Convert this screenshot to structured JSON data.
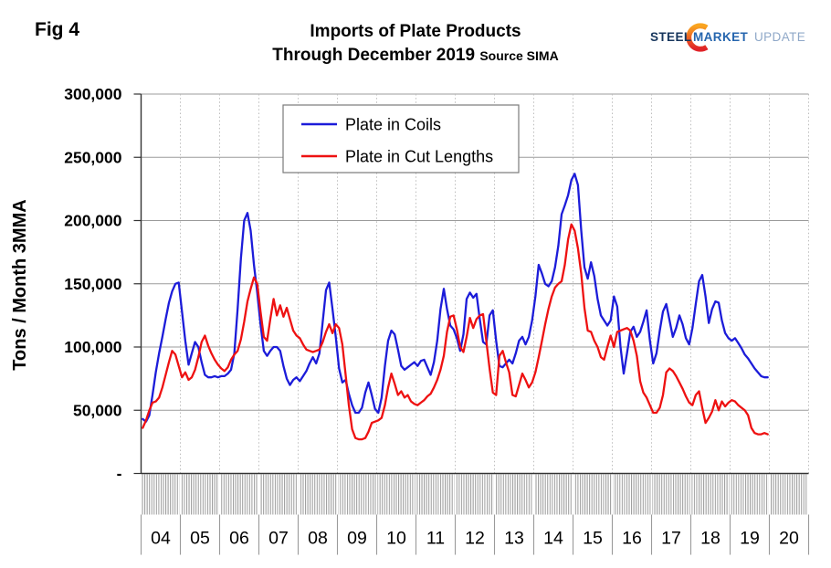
{
  "figure_label": "Fig 4",
  "title": {
    "line1": "Imports of Plate Products",
    "line2": "Through December 2019",
    "source": "Source SIMA"
  },
  "logo": {
    "steel": "STEEL",
    "market": "MARKET",
    "update": "UPDATE"
  },
  "chart_data": {
    "type": "line",
    "title": "Imports of Plate Products Through December 2019",
    "source": "SIMA",
    "ylabel": "Tons / Month 3MMA",
    "ylim": [
      0,
      300000
    ],
    "ytick_values": [
      300,
      250,
      200,
      150,
      100,
      50,
      0
    ],
    "ytick_labels": [
      "300,000",
      "250,000",
      "200,000",
      "150,000",
      "100,000",
      "50,000",
      "-"
    ],
    "x_years": [
      "04",
      "05",
      "06",
      "07",
      "08",
      "09",
      "10",
      "11",
      "12",
      "13",
      "14",
      "15",
      "16",
      "17",
      "18",
      "19",
      "20"
    ],
    "frequency": "monthly",
    "x_start": "2004-01",
    "x_end": "2019-12",
    "units": "tons per month, 3-month moving average (series values stored in thousands of tons)",
    "grid": {
      "horizontal_solid": true,
      "vertical_dotted_yearly": true
    },
    "legend": {
      "position": "top-center-inside",
      "entries": [
        {
          "label": "Plate in Coils",
          "color": "#1c1cd9"
        },
        {
          "label": "Plate in Cut Lengths",
          "color": "#ee1111"
        }
      ]
    },
    "series": [
      {
        "name": "Plate in Coils",
        "color": "#1c1cd9",
        "values": [
          43,
          41,
          46,
          62,
          80,
          95,
          108,
          122,
          135,
          144,
          150,
          151,
          128,
          105,
          86,
          95,
          104,
          100,
          88,
          78,
          76,
          76,
          77,
          76,
          77,
          77,
          79,
          82,
          95,
          130,
          170,
          200,
          206,
          192,
          165,
          143,
          118,
          97,
          93,
          97,
          100,
          100,
          97,
          85,
          75,
          70,
          74,
          76,
          73,
          77,
          81,
          87,
          92,
          87,
          95,
          120,
          145,
          151,
          130,
          108,
          83,
          72,
          74,
          63,
          54,
          48,
          48,
          52,
          64,
          72,
          62,
          51,
          48,
          60,
          85,
          105,
          113,
          110,
          98,
          85,
          82,
          84,
          86,
          88,
          85,
          89,
          90,
          84,
          78,
          88,
          105,
          130,
          146,
          130,
          117,
          114,
          107,
          97,
          110,
          138,
          143,
          139,
          142,
          122,
          104,
          102,
          125,
          129,
          105,
          85,
          84,
          87,
          90,
          87,
          95,
          105,
          108,
          102,
          108,
          121,
          140,
          165,
          158,
          150,
          148,
          152,
          163,
          180,
          205,
          212,
          220,
          232,
          237,
          228,
          192,
          163,
          154,
          167,
          156,
          138,
          125,
          121,
          117,
          121,
          140,
          132,
          100,
          79,
          95,
          112,
          116,
          108,
          112,
          120,
          129,
          105,
          87,
          95,
          113,
          128,
          134,
          121,
          108,
          115,
          125,
          118,
          107,
          102,
          115,
          134,
          152,
          157,
          140,
          119,
          130,
          136,
          135,
          121,
          111,
          107,
          105,
          107,
          103,
          99,
          94,
          91,
          87,
          83,
          80,
          77,
          76,
          76
        ]
      },
      {
        "name": "Plate in Cut Lengths",
        "color": "#ee1111",
        "values": [
          36,
          42,
          50,
          56,
          57,
          60,
          68,
          78,
          88,
          97,
          94,
          85,
          76,
          80,
          74,
          76,
          82,
          92,
          104,
          109,
          101,
          95,
          90,
          86,
          83,
          81,
          84,
          90,
          94,
          97,
          106,
          120,
          136,
          146,
          155,
          150,
          128,
          108,
          105,
          122,
          138,
          125,
          133,
          124,
          131,
          122,
          113,
          109,
          107,
          102,
          98,
          97,
          96,
          97,
          98,
          104,
          112,
          118,
          111,
          118,
          115,
          102,
          78,
          54,
          35,
          28,
          27,
          27,
          28,
          33,
          40,
          41,
          42,
          44,
          54,
          68,
          79,
          71,
          62,
          65,
          60,
          62,
          57,
          55,
          54,
          56,
          58,
          61,
          63,
          68,
          74,
          82,
          93,
          112,
          124,
          125,
          114,
          100,
          96,
          108,
          123,
          115,
          122,
          125,
          126,
          105,
          83,
          64,
          62,
          93,
          97,
          88,
          80,
          62,
          61,
          70,
          79,
          74,
          68,
          72,
          80,
          92,
          105,
          118,
          130,
          140,
          147,
          150,
          152,
          165,
          185,
          197,
          192,
          178,
          158,
          131,
          113,
          112,
          105,
          100,
          92,
          90,
          100,
          109,
          100,
          112,
          113,
          114,
          115,
          113,
          105,
          93,
          73,
          64,
          60,
          54,
          48,
          48,
          52,
          62,
          80,
          83,
          81,
          77,
          72,
          67,
          61,
          56,
          54,
          62,
          65,
          52,
          40,
          44,
          49,
          58,
          50,
          57,
          53,
          56,
          58,
          57,
          54,
          52,
          50,
          46,
          36,
          32,
          31,
          31,
          32,
          31
        ]
      }
    ]
  }
}
